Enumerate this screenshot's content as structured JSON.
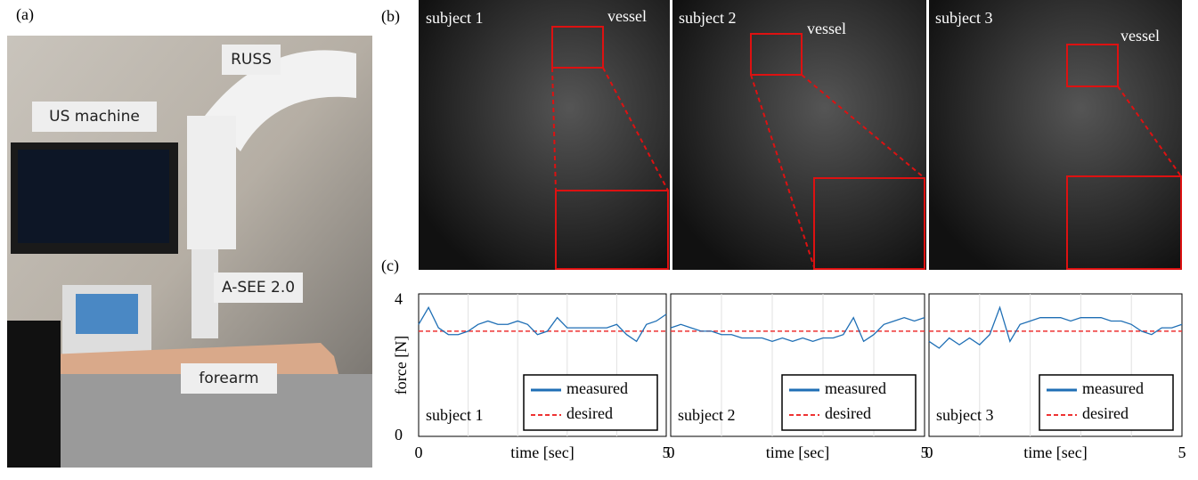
{
  "panel_labels": {
    "a": "(a)",
    "b": "(b)",
    "c": "(c)"
  },
  "photo": {
    "labels": [
      "RUSS",
      "US machine",
      "A-SEE 2.0",
      "forearm"
    ]
  },
  "ultrasound": [
    {
      "subject": "subject 1",
      "annotation": "vessel"
    },
    {
      "subject": "subject 2",
      "annotation": "vessel"
    },
    {
      "subject": "subject 3",
      "annotation": "vessel"
    }
  ],
  "chart_data": [
    {
      "type": "line",
      "ylabel": "force [N]",
      "xlabel": "time [sec]",
      "annotation": "subject 1",
      "x": [
        0,
        0.2,
        0.4,
        0.6,
        0.8,
        1,
        1.2,
        1.4,
        1.6,
        1.8,
        2,
        2.2,
        2.4,
        2.6,
        2.8,
        3,
        3.2,
        3.4,
        3.6,
        3.8,
        4,
        4.2,
        4.4,
        4.6,
        4.8,
        5
      ],
      "series": [
        {
          "name": "measured",
          "color": "#1f6fb5",
          "values": [
            3.3,
            3.8,
            3.2,
            3.0,
            3.0,
            3.1,
            3.3,
            3.4,
            3.3,
            3.3,
            3.4,
            3.3,
            3.0,
            3.1,
            3.5,
            3.2,
            3.2,
            3.2,
            3.2,
            3.2,
            3.3,
            3.0,
            2.8,
            3.3,
            3.4,
            3.6
          ]
        },
        {
          "name": "desired",
          "color": "#ee3333",
          "dashed": true,
          "values": [
            3.1,
            3.1,
            3.1,
            3.1,
            3.1,
            3.1,
            3.1,
            3.1,
            3.1,
            3.1,
            3.1,
            3.1,
            3.1,
            3.1,
            3.1,
            3.1,
            3.1,
            3.1,
            3.1,
            3.1,
            3.1,
            3.1,
            3.1,
            3.1,
            3.1,
            3.1
          ]
        }
      ],
      "xlim": [
        0,
        5
      ],
      "xticks": [
        0,
        5
      ],
      "xgrid": [
        1,
        2,
        3,
        4
      ],
      "ylim": [
        0,
        4.2
      ],
      "yticks": [
        0,
        4
      ]
    },
    {
      "type": "line",
      "xlabel": "time [sec]",
      "annotation": "subject 2",
      "x": [
        0,
        0.2,
        0.4,
        0.6,
        0.8,
        1,
        1.2,
        1.4,
        1.6,
        1.8,
        2,
        2.2,
        2.4,
        2.6,
        2.8,
        3,
        3.2,
        3.4,
        3.6,
        3.8,
        4,
        4.2,
        4.4,
        4.6,
        4.8,
        5
      ],
      "series": [
        {
          "name": "measured",
          "color": "#1f6fb5",
          "values": [
            3.2,
            3.3,
            3.2,
            3.1,
            3.1,
            3.0,
            3.0,
            2.9,
            2.9,
            2.9,
            2.8,
            2.9,
            2.8,
            2.9,
            2.8,
            2.9,
            2.9,
            3.0,
            3.5,
            2.8,
            3.0,
            3.3,
            3.4,
            3.5,
            3.4,
            3.5
          ]
        },
        {
          "name": "desired",
          "color": "#ee3333",
          "dashed": true,
          "values": [
            3.1,
            3.1,
            3.1,
            3.1,
            3.1,
            3.1,
            3.1,
            3.1,
            3.1,
            3.1,
            3.1,
            3.1,
            3.1,
            3.1,
            3.1,
            3.1,
            3.1,
            3.1,
            3.1,
            3.1,
            3.1,
            3.1,
            3.1,
            3.1,
            3.1,
            3.1
          ]
        }
      ],
      "xlim": [
        0,
        5
      ],
      "xticks": [
        0,
        5
      ],
      "xgrid": [
        1,
        2,
        3,
        4
      ],
      "ylim": [
        0,
        4.2
      ]
    },
    {
      "type": "line",
      "xlabel": "time [sec]",
      "annotation": "subject 3",
      "x": [
        0,
        0.2,
        0.4,
        0.6,
        0.8,
        1,
        1.2,
        1.4,
        1.6,
        1.8,
        2,
        2.2,
        2.4,
        2.6,
        2.8,
        3,
        3.2,
        3.4,
        3.6,
        3.8,
        4,
        4.2,
        4.4,
        4.6,
        4.8,
        5
      ],
      "series": [
        {
          "name": "measured",
          "color": "#1f6fb5",
          "values": [
            2.8,
            2.6,
            2.9,
            2.7,
            2.9,
            2.7,
            3.0,
            3.8,
            2.8,
            3.3,
            3.4,
            3.5,
            3.5,
            3.5,
            3.4,
            3.5,
            3.5,
            3.5,
            3.4,
            3.4,
            3.3,
            3.1,
            3.0,
            3.2,
            3.2,
            3.3
          ]
        },
        {
          "name": "desired",
          "color": "#ee3333",
          "dashed": true,
          "values": [
            3.1,
            3.1,
            3.1,
            3.1,
            3.1,
            3.1,
            3.1,
            3.1,
            3.1,
            3.1,
            3.1,
            3.1,
            3.1,
            3.1,
            3.1,
            3.1,
            3.1,
            3.1,
            3.1,
            3.1,
            3.1,
            3.1,
            3.1,
            3.1,
            3.1,
            3.1
          ]
        }
      ],
      "xlim": [
        0,
        5
      ],
      "xticks": [
        0,
        5
      ],
      "xgrid": [
        1,
        2,
        3,
        4
      ],
      "ylim": [
        0,
        4.2
      ]
    }
  ]
}
